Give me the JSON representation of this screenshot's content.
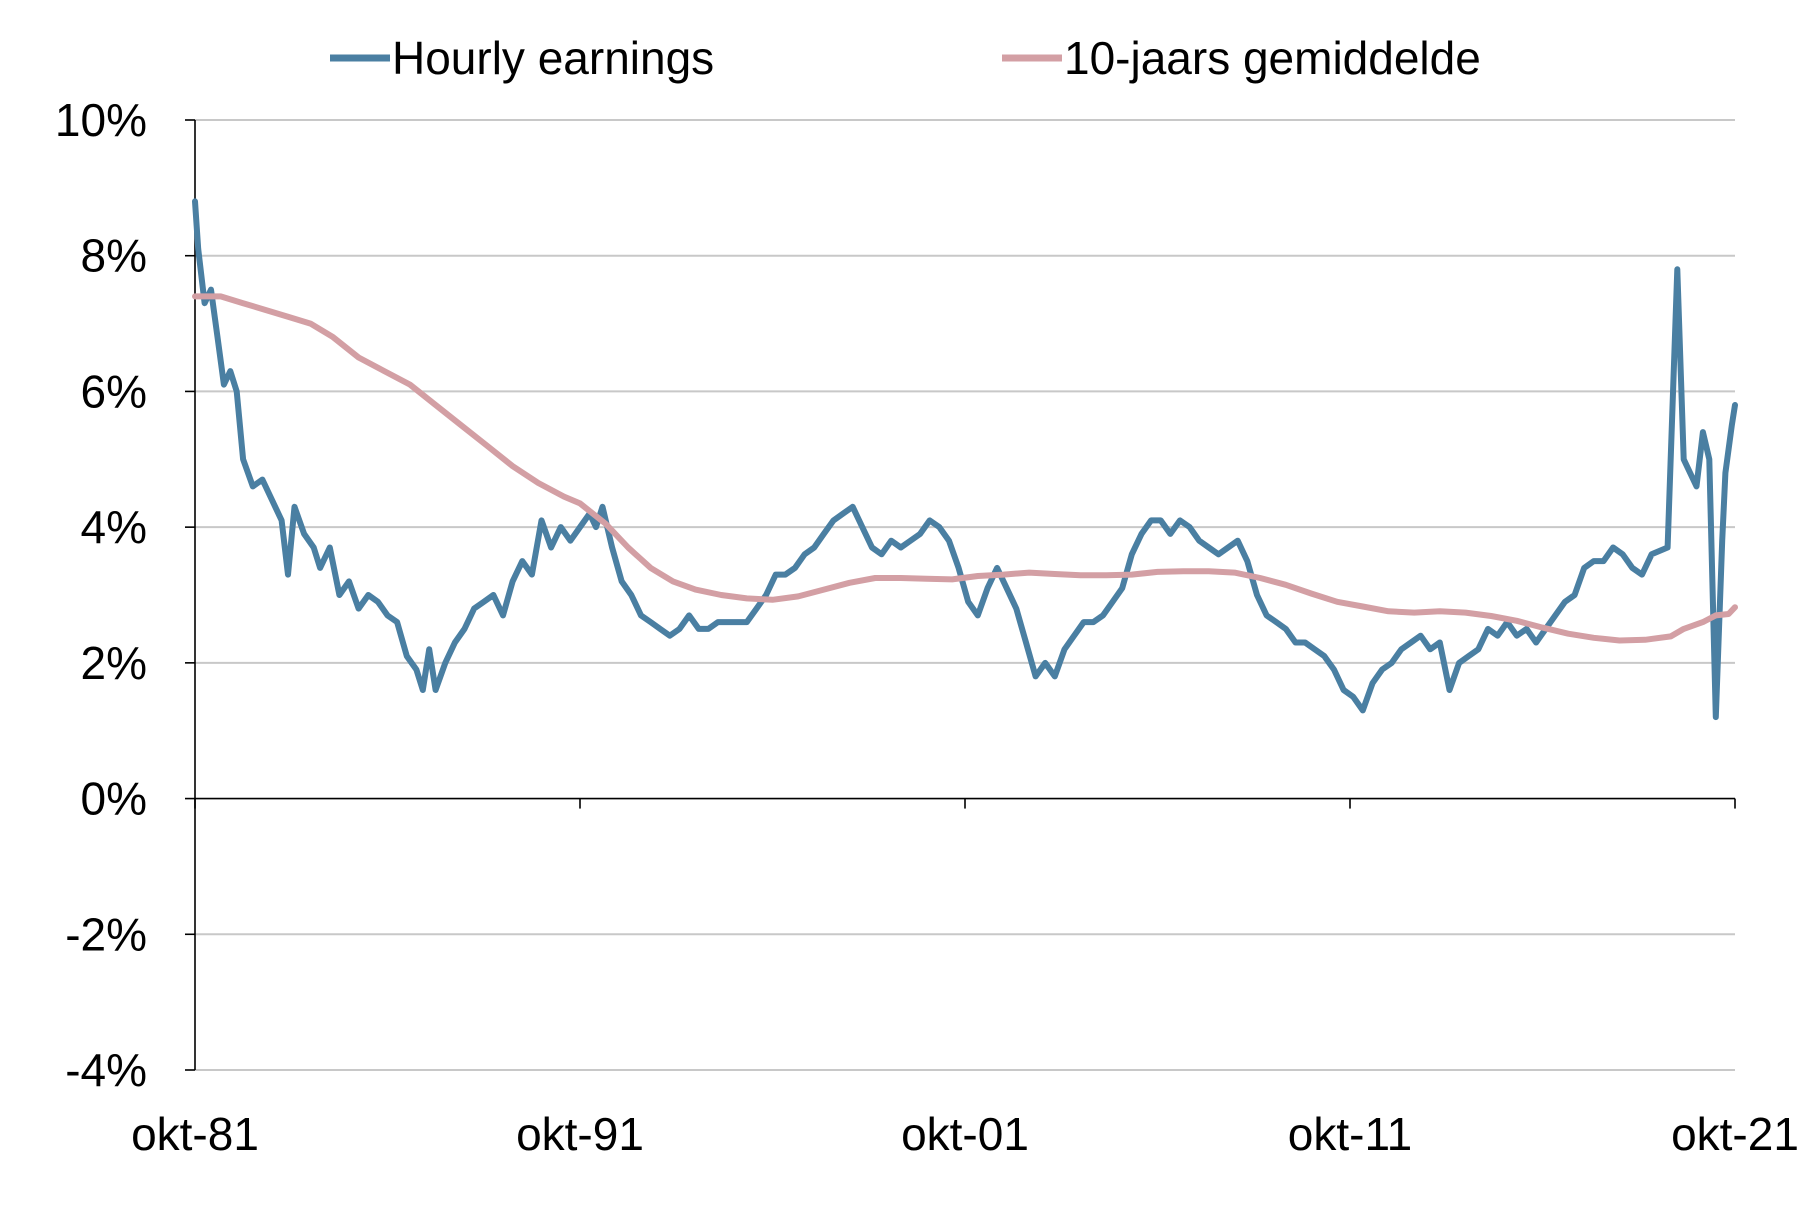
{
  "chart_data": {
    "type": "line",
    "title": "",
    "xlabel": "",
    "ylabel": "",
    "x_range": [
      "1981-10",
      "2021-10"
    ],
    "ylim": [
      -4,
      10
    ],
    "grid": true,
    "legend_position": "top",
    "y_ticks": [
      {
        "value": 10,
        "label": "10%"
      },
      {
        "value": 8,
        "label": "8%"
      },
      {
        "value": 6,
        "label": "6%"
      },
      {
        "value": 4,
        "label": "4%"
      },
      {
        "value": 2,
        "label": "2%"
      },
      {
        "value": 0,
        "label": "0%"
      },
      {
        "value": -2,
        "label": "-2%"
      },
      {
        "value": -4,
        "label": "-4%"
      }
    ],
    "x_ticks": [
      {
        "date": "1981-10",
        "label": "okt-81"
      },
      {
        "date": "1991-10",
        "label": "okt-91"
      },
      {
        "date": "2001-10",
        "label": "okt-01"
      },
      {
        "date": "2011-10",
        "label": "okt-11"
      },
      {
        "date": "2021-10",
        "label": "okt-21"
      }
    ],
    "series": [
      {
        "name": "Hourly earnings",
        "color": "#4a7fa2",
        "points": [
          [
            "1981-10",
            8.8
          ],
          [
            "1981-11",
            8.1
          ],
          [
            "1982-01",
            7.3
          ],
          [
            "1982-03",
            7.5
          ],
          [
            "1982-05",
            6.8
          ],
          [
            "1982-07",
            6.1
          ],
          [
            "1982-09",
            6.3
          ],
          [
            "1982-11",
            6.0
          ],
          [
            "1983-01",
            5.0
          ],
          [
            "1983-04",
            4.6
          ],
          [
            "1983-07",
            4.7
          ],
          [
            "1983-10",
            4.4
          ],
          [
            "1984-01",
            4.1
          ],
          [
            "1984-03",
            3.3
          ],
          [
            "1984-05",
            4.3
          ],
          [
            "1984-08",
            3.9
          ],
          [
            "1984-11",
            3.7
          ],
          [
            "1985-01",
            3.4
          ],
          [
            "1985-04",
            3.7
          ],
          [
            "1985-07",
            3.0
          ],
          [
            "1985-10",
            3.2
          ],
          [
            "1986-01",
            2.8
          ],
          [
            "1986-04",
            3.0
          ],
          [
            "1986-07",
            2.9
          ],
          [
            "1986-10",
            2.7
          ],
          [
            "1987-01",
            2.6
          ],
          [
            "1987-04",
            2.1
          ],
          [
            "1987-07",
            1.9
          ],
          [
            "1987-09",
            1.6
          ],
          [
            "1987-11",
            2.2
          ],
          [
            "1988-01",
            1.6
          ],
          [
            "1988-04",
            2.0
          ],
          [
            "1988-07",
            2.3
          ],
          [
            "1988-10",
            2.5
          ],
          [
            "1989-01",
            2.8
          ],
          [
            "1989-04",
            2.9
          ],
          [
            "1989-07",
            3.0
          ],
          [
            "1989-10",
            2.7
          ],
          [
            "1990-01",
            3.2
          ],
          [
            "1990-04",
            3.5
          ],
          [
            "1990-07",
            3.3
          ],
          [
            "1990-10",
            4.1
          ],
          [
            "1991-01",
            3.7
          ],
          [
            "1991-04",
            4.0
          ],
          [
            "1991-07",
            3.8
          ],
          [
            "1991-10",
            4.0
          ],
          [
            "1992-01",
            4.2
          ],
          [
            "1992-03",
            4.0
          ],
          [
            "1992-05",
            4.3
          ],
          [
            "1992-08",
            3.7
          ],
          [
            "1992-11",
            3.2
          ],
          [
            "1993-02",
            3.0
          ],
          [
            "1993-05",
            2.7
          ],
          [
            "1993-08",
            2.6
          ],
          [
            "1993-11",
            2.5
          ],
          [
            "1994-02",
            2.4
          ],
          [
            "1994-05",
            2.5
          ],
          [
            "1994-08",
            2.7
          ],
          [
            "1994-11",
            2.5
          ],
          [
            "1995-02",
            2.5
          ],
          [
            "1995-05",
            2.6
          ],
          [
            "1995-08",
            2.6
          ],
          [
            "1995-11",
            2.6
          ],
          [
            "1996-02",
            2.6
          ],
          [
            "1996-05",
            2.8
          ],
          [
            "1996-08",
            3.0
          ],
          [
            "1996-11",
            3.3
          ],
          [
            "1997-02",
            3.3
          ],
          [
            "1997-05",
            3.4
          ],
          [
            "1997-08",
            3.6
          ],
          [
            "1997-11",
            3.7
          ],
          [
            "1998-02",
            3.9
          ],
          [
            "1998-05",
            4.1
          ],
          [
            "1998-08",
            4.2
          ],
          [
            "1998-11",
            4.3
          ],
          [
            "1999-02",
            4.0
          ],
          [
            "1999-05",
            3.7
          ],
          [
            "1999-08",
            3.6
          ],
          [
            "1999-11",
            3.8
          ],
          [
            "2000-02",
            3.7
          ],
          [
            "2000-05",
            3.8
          ],
          [
            "2000-08",
            3.9
          ],
          [
            "2000-11",
            4.1
          ],
          [
            "2001-02",
            4.0
          ],
          [
            "2001-05",
            3.8
          ],
          [
            "2001-08",
            3.4
          ],
          [
            "2001-11",
            2.9
          ],
          [
            "2002-02",
            2.7
          ],
          [
            "2002-05",
            3.1
          ],
          [
            "2002-08",
            3.4
          ],
          [
            "2002-11",
            3.1
          ],
          [
            "2003-02",
            2.8
          ],
          [
            "2003-05",
            2.3
          ],
          [
            "2003-08",
            1.8
          ],
          [
            "2003-11",
            2.0
          ],
          [
            "2004-02",
            1.8
          ],
          [
            "2004-05",
            2.2
          ],
          [
            "2004-08",
            2.4
          ],
          [
            "2004-11",
            2.6
          ],
          [
            "2005-02",
            2.6
          ],
          [
            "2005-05",
            2.7
          ],
          [
            "2005-08",
            2.9
          ],
          [
            "2005-11",
            3.1
          ],
          [
            "2006-02",
            3.6
          ],
          [
            "2006-05",
            3.9
          ],
          [
            "2006-08",
            4.1
          ],
          [
            "2006-11",
            4.1
          ],
          [
            "2007-02",
            3.9
          ],
          [
            "2007-05",
            4.1
          ],
          [
            "2007-08",
            4.0
          ],
          [
            "2007-11",
            3.8
          ],
          [
            "2008-02",
            3.7
          ],
          [
            "2008-05",
            3.6
          ],
          [
            "2008-08",
            3.7
          ],
          [
            "2008-11",
            3.8
          ],
          [
            "2009-02",
            3.5
          ],
          [
            "2009-05",
            3.0
          ],
          [
            "2009-08",
            2.7
          ],
          [
            "2009-11",
            2.6
          ],
          [
            "2010-02",
            2.5
          ],
          [
            "2010-05",
            2.3
          ],
          [
            "2010-08",
            2.3
          ],
          [
            "2010-11",
            2.2
          ],
          [
            "2011-02",
            2.1
          ],
          [
            "2011-05",
            1.9
          ],
          [
            "2011-08",
            1.6
          ],
          [
            "2011-11",
            1.5
          ],
          [
            "2012-02",
            1.3
          ],
          [
            "2012-05",
            1.7
          ],
          [
            "2012-08",
            1.9
          ],
          [
            "2012-11",
            2.0
          ],
          [
            "2013-02",
            2.2
          ],
          [
            "2013-05",
            2.3
          ],
          [
            "2013-08",
            2.4
          ],
          [
            "2013-11",
            2.2
          ],
          [
            "2014-02",
            2.3
          ],
          [
            "2014-05",
            1.6
          ],
          [
            "2014-08",
            2.0
          ],
          [
            "2014-11",
            2.1
          ],
          [
            "2015-02",
            2.2
          ],
          [
            "2015-05",
            2.5
          ],
          [
            "2015-08",
            2.4
          ],
          [
            "2015-11",
            2.6
          ],
          [
            "2016-02",
            2.4
          ],
          [
            "2016-05",
            2.5
          ],
          [
            "2016-08",
            2.3
          ],
          [
            "2016-11",
            2.5
          ],
          [
            "2017-02",
            2.7
          ],
          [
            "2017-05",
            2.9
          ],
          [
            "2017-08",
            3.0
          ],
          [
            "2017-11",
            3.4
          ],
          [
            "2018-02",
            3.5
          ],
          [
            "2018-05",
            3.5
          ],
          [
            "2018-08",
            3.7
          ],
          [
            "2018-11",
            3.6
          ],
          [
            "2019-02",
            3.4
          ],
          [
            "2019-05",
            3.3
          ],
          [
            "2019-08",
            3.6
          ],
          [
            "2020-01",
            3.7
          ],
          [
            "2020-04",
            7.8
          ],
          [
            "2020-06",
            5.0
          ],
          [
            "2020-08",
            4.8
          ],
          [
            "2020-10",
            4.6
          ],
          [
            "2020-12",
            5.4
          ],
          [
            "2021-02",
            5.0
          ],
          [
            "2021-04",
            1.2
          ],
          [
            "2021-06",
            3.8
          ],
          [
            "2021-07",
            4.8
          ],
          [
            "2021-09",
            5.5
          ],
          [
            "2021-10",
            5.8
          ]
        ]
      },
      {
        "name": "10-jaars gemiddelde",
        "color": "#d39fa4",
        "points": [
          [
            "1981-10",
            7.4
          ],
          [
            "1982-06",
            7.4
          ],
          [
            "1983-01",
            7.3
          ],
          [
            "1983-08",
            7.2
          ],
          [
            "1984-03",
            7.1
          ],
          [
            "1984-10",
            7.0
          ],
          [
            "1985-05",
            6.8
          ],
          [
            "1986-01",
            6.5
          ],
          [
            "1986-09",
            6.3
          ],
          [
            "1987-05",
            6.1
          ],
          [
            "1988-01",
            5.8
          ],
          [
            "1988-09",
            5.5
          ],
          [
            "1989-05",
            5.2
          ],
          [
            "1990-01",
            4.9
          ],
          [
            "1990-09",
            4.65
          ],
          [
            "1991-05",
            4.45
          ],
          [
            "1991-10",
            4.35
          ],
          [
            "1992-06",
            4.05
          ],
          [
            "1993-01",
            3.7
          ],
          [
            "1993-08",
            3.4
          ],
          [
            "1994-03",
            3.2
          ],
          [
            "1994-10",
            3.08
          ],
          [
            "1995-06",
            3.0
          ],
          [
            "1996-02",
            2.95
          ],
          [
            "1996-10",
            2.93
          ],
          [
            "1997-06",
            2.98
          ],
          [
            "1998-02",
            3.08
          ],
          [
            "1998-10",
            3.18
          ],
          [
            "1999-06",
            3.25
          ],
          [
            "2000-02",
            3.25
          ],
          [
            "2000-10",
            3.24
          ],
          [
            "2001-06",
            3.23
          ],
          [
            "2002-02",
            3.28
          ],
          [
            "2002-10",
            3.3
          ],
          [
            "2003-06",
            3.33
          ],
          [
            "2004-02",
            3.31
          ],
          [
            "2004-10",
            3.29
          ],
          [
            "2005-06",
            3.29
          ],
          [
            "2006-02",
            3.3
          ],
          [
            "2006-10",
            3.34
          ],
          [
            "2007-06",
            3.35
          ],
          [
            "2008-02",
            3.35
          ],
          [
            "2008-10",
            3.33
          ],
          [
            "2009-06",
            3.25
          ],
          [
            "2010-02",
            3.15
          ],
          [
            "2010-10",
            3.02
          ],
          [
            "2011-06",
            2.9
          ],
          [
            "2012-02",
            2.83
          ],
          [
            "2012-10",
            2.76
          ],
          [
            "2013-06",
            2.74
          ],
          [
            "2014-02",
            2.76
          ],
          [
            "2014-10",
            2.74
          ],
          [
            "2015-06",
            2.69
          ],
          [
            "2016-02",
            2.62
          ],
          [
            "2016-10",
            2.52
          ],
          [
            "2017-06",
            2.43
          ],
          [
            "2018-02",
            2.37
          ],
          [
            "2018-10",
            2.33
          ],
          [
            "2019-06",
            2.34
          ],
          [
            "2020-02",
            2.39
          ],
          [
            "2020-06",
            2.5
          ],
          [
            "2020-12",
            2.6
          ],
          [
            "2021-04",
            2.7
          ],
          [
            "2021-08",
            2.72
          ],
          [
            "2021-10",
            2.82
          ]
        ]
      }
    ]
  }
}
